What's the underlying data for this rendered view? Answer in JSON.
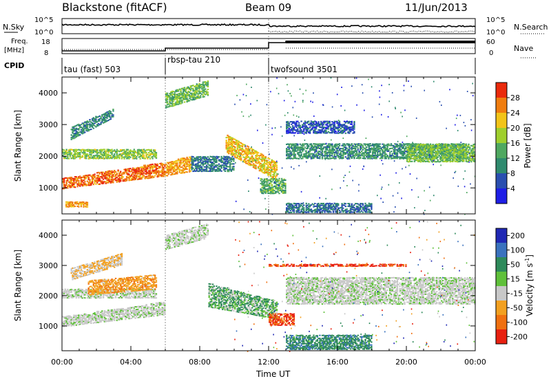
{
  "header": {
    "station": "Blackstone (fitACF)",
    "beam": "Beam 09",
    "date": "11/Jun/2013"
  },
  "summary": {
    "nsky_label": "N.Sky",
    "nsearch_label": "N.Search",
    "freq_label_1": "Freq.",
    "freq_label_2": "[MHz]",
    "nave_label": "Nave",
    "cpid_label": "CPID",
    "nsky_ticks": [
      "10^5",
      "10^0"
    ],
    "nsearch_ticks": [
      "10^5",
      "10^0"
    ],
    "freq_ticks": [
      "18",
      "8"
    ],
    "nave_ticks": [
      "60",
      "0"
    ]
  },
  "cpid": {
    "segments": [
      {
        "start_hour": 0,
        "label": "tau (fast) 503"
      },
      {
        "start_hour": 6,
        "label": "rbsp-tau 210"
      },
      {
        "start_hour": 12,
        "label": "twofsound 3501"
      }
    ]
  },
  "axes": {
    "xlabel": "Time UT",
    "x_ticks": [
      "00:00",
      "04:00",
      "08:00",
      "12:00",
      "16:00",
      "20:00",
      "00:00"
    ],
    "ylabel": "Slant Range [km]",
    "y_ticks": [
      "1000",
      "2000",
      "3000",
      "4000"
    ]
  },
  "colorbars": {
    "power_label": "Power [dB]",
    "power_ticks": [
      "4",
      "8",
      "12",
      "16",
      "20",
      "24",
      "28"
    ],
    "velocity_label": "Velocity [m s",
    "velocity_sup": "-1",
    "velocity_label_end": "]",
    "velocity_ticks": [
      "200",
      "100",
      "50",
      "15",
      "-15",
      "-50",
      "-100",
      "-200"
    ]
  },
  "chart_data": [
    {
      "type": "heatmap",
      "name": "power",
      "xlabel": "Time UT",
      "ylabel": "Slant Range [km]",
      "xlim": [
        0,
        24
      ],
      "ylim": [
        180,
        4500
      ],
      "colorbar": {
        "label": "Power [dB]",
        "range": [
          0,
          32
        ],
        "ticks": [
          4,
          8,
          12,
          16,
          20,
          24,
          28
        ],
        "colors": [
          "#1e1ee6",
          "#2a4fb0",
          "#2f8a6e",
          "#4fa860",
          "#9fcf2d",
          "#f2c418",
          "#f07d0f",
          "#ea2a0c"
        ]
      },
      "bands": [
        {
          "t": [
            0.0,
            6.0
          ],
          "range": [
            950,
            1300
          ],
          "end_range": [
            1350,
            1800
          ],
          "power": 27
        },
        {
          "t": [
            6.0,
            7.5
          ],
          "range": [
            1350,
            1800
          ],
          "end_range": [
            1500,
            2000
          ],
          "power": 24
        },
        {
          "t": [
            0.0,
            5.5
          ],
          "range": [
            1900,
            2200
          ],
          "power": 17
        },
        {
          "t": [
            0.2,
            1.5
          ],
          "range": [
            380,
            560
          ],
          "power": 24
        },
        {
          "t": [
            0.5,
            3.0
          ],
          "range": [
            2500,
            2900
          ],
          "end_range": [
            3200,
            3500
          ],
          "power": 10
        },
        {
          "t": [
            6.0,
            8.5
          ],
          "range": [
            3500,
            4000
          ],
          "end_range": [
            3900,
            4400
          ],
          "power": 15
        },
        {
          "t": [
            7.5,
            10.0
          ],
          "range": [
            1500,
            2000
          ],
          "power": 9
        },
        {
          "t": [
            9.5,
            12.5
          ],
          "range": [
            2100,
            2700
          ],
          "end_range": [
            1200,
            1800
          ],
          "power": 22
        },
        {
          "t": [
            11.5,
            13.0
          ],
          "range": [
            800,
            1300
          ],
          "power": 14
        },
        {
          "t": [
            13.0,
            17.0
          ],
          "range": [
            2700,
            3100
          ],
          "power": 6
        },
        {
          "t": [
            13.0,
            23.5
          ],
          "range": [
            1900,
            2400
          ],
          "power": 11
        },
        {
          "t": [
            20.0,
            24.0
          ],
          "range": [
            1800,
            2400
          ],
          "power": 16
        },
        {
          "t": [
            13.0,
            18.0
          ],
          "range": [
            200,
            500
          ],
          "power": 8
        }
      ]
    },
    {
      "type": "heatmap",
      "name": "velocity",
      "xlabel": "Time UT",
      "ylabel": "Slant Range [km]",
      "xlim": [
        0,
        24
      ],
      "ylim": [
        180,
        4500
      ],
      "colorbar": {
        "label": "Velocity [m s-1]",
        "range": [
          -250,
          250
        ],
        "ticks": [
          200,
          100,
          50,
          15,
          -15,
          -50,
          -100,
          -200
        ],
        "colors": [
          "#2028b4",
          "#3a72be",
          "#2e8a5a",
          "#5fc03a",
          "#c8c8c8",
          "#f2a020",
          "#f07010",
          "#e82010"
        ]
      },
      "bands": [
        {
          "t": [
            0.0,
            6.0
          ],
          "range": [
            950,
            1300
          ],
          "end_range": [
            1350,
            1800
          ],
          "velocity": 0
        },
        {
          "t": [
            0.0,
            5.5
          ],
          "range": [
            1900,
            2200
          ],
          "velocity": 0
        },
        {
          "t": [
            1.5,
            5.5
          ],
          "range": [
            2000,
            2500
          ],
          "end_range": [
            2200,
            2700
          ],
          "velocity": -60
        },
        {
          "t": [
            0.5,
            3.5
          ],
          "range": [
            2500,
            2900
          ],
          "end_range": [
            3000,
            3400
          ],
          "velocity": -30
        },
        {
          "t": [
            6.0,
            8.5
          ],
          "range": [
            3500,
            4000
          ],
          "end_range": [
            3900,
            4400
          ],
          "velocity": 0
        },
        {
          "t": [
            8.5,
            12.5
          ],
          "range": [
            1600,
            2400
          ],
          "end_range": [
            1200,
            1800
          ],
          "velocity": 30
        },
        {
          "t": [
            12.0,
            13.5
          ],
          "range": [
            1000,
            1400
          ],
          "velocity": -150
        },
        {
          "t": [
            13.0,
            24.0
          ],
          "range": [
            1700,
            2600
          ],
          "velocity": 0
        },
        {
          "t": [
            13.0,
            18.0
          ],
          "range": [
            200,
            700
          ],
          "velocity": 60
        },
        {
          "t": [
            12.0,
            20.0
          ],
          "range": [
            2950,
            3050
          ],
          "velocity": -150
        }
      ]
    }
  ]
}
